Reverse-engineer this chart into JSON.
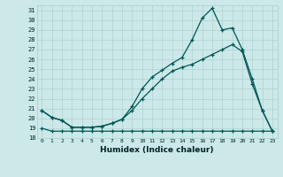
{
  "title": "",
  "xlabel": "Humidex (Indice chaleur)",
  "ylabel": "",
  "bg_color": "#cce8e8",
  "grid_color": "#aacccc",
  "line_color": "#005555",
  "xlim": [
    -0.5,
    23.5
  ],
  "ylim": [
    18,
    31.5
  ],
  "yticks": [
    18,
    19,
    20,
    21,
    22,
    23,
    24,
    25,
    26,
    27,
    28,
    29,
    30,
    31
  ],
  "xticks": [
    0,
    1,
    2,
    3,
    4,
    5,
    6,
    7,
    8,
    9,
    10,
    11,
    12,
    13,
    14,
    15,
    16,
    17,
    18,
    19,
    20,
    21,
    22,
    23
  ],
  "series1_x": [
    0,
    1,
    2,
    3,
    4,
    5,
    6,
    7,
    8,
    9,
    10,
    11,
    12,
    13,
    14,
    15,
    16,
    17,
    18,
    19,
    20,
    21,
    22,
    23
  ],
  "series1_y": [
    19.0,
    18.7,
    18.7,
    18.7,
    18.7,
    18.7,
    18.7,
    18.7,
    18.7,
    18.7,
    18.7,
    18.7,
    18.7,
    18.7,
    18.7,
    18.7,
    18.7,
    18.7,
    18.7,
    18.7,
    18.7,
    18.7,
    18.7,
    18.7
  ],
  "series2_x": [
    0,
    1,
    2,
    3,
    4,
    5,
    6,
    7,
    8,
    9,
    10,
    11,
    12,
    13,
    14,
    15,
    16,
    17,
    18,
    19,
    20,
    21,
    22,
    23
  ],
  "series2_y": [
    20.8,
    20.1,
    19.8,
    19.1,
    19.1,
    19.1,
    19.2,
    19.5,
    19.9,
    20.8,
    22.0,
    23.0,
    24.0,
    24.8,
    25.2,
    25.5,
    26.0,
    26.5,
    27.0,
    27.5,
    26.8,
    23.5,
    20.8,
    18.7
  ],
  "series3_x": [
    0,
    1,
    2,
    3,
    4,
    5,
    6,
    7,
    8,
    9,
    10,
    11,
    12,
    13,
    14,
    15,
    16,
    17,
    18,
    19,
    20,
    21,
    22,
    23
  ],
  "series3_y": [
    20.8,
    20.1,
    19.8,
    19.1,
    19.1,
    19.1,
    19.2,
    19.5,
    19.9,
    21.2,
    23.0,
    24.2,
    24.9,
    25.6,
    26.2,
    28.0,
    30.2,
    31.2,
    29.0,
    29.2,
    27.0,
    24.0,
    20.8,
    18.7
  ],
  "marker": "+",
  "markersize": 3,
  "linewidth": 0.9,
  "markeredgewidth": 0.9
}
